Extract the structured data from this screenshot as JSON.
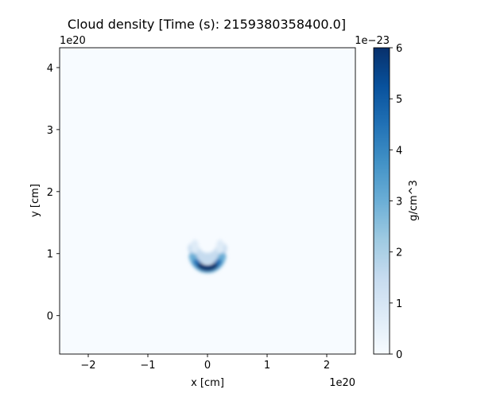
{
  "chart_data": {
    "type": "heatmap",
    "title": "Cloud density [Time (s): 2159380358400.0]",
    "xlabel": "x [cm]",
    "ylabel": "y [cm]",
    "x_offset_label": "1e20",
    "y_offset_label": "1e20",
    "xlim": [
      -2.48,
      2.48
    ],
    "ylim": [
      -0.62,
      4.32
    ],
    "x_ticks": [
      -2,
      -1,
      0,
      1,
      2
    ],
    "x_tick_labels": [
      "−2",
      "−1",
      "0",
      "1",
      "2"
    ],
    "y_ticks": [
      0,
      1,
      2,
      3,
      4
    ],
    "y_tick_labels": [
      "0",
      "1",
      "2",
      "3",
      "4"
    ],
    "colormap": "Blues",
    "colorbar": {
      "label": "g/cm^3",
      "offset_label": "1e−23",
      "range": [
        0,
        6
      ],
      "ticks": [
        0,
        1,
        2,
        3,
        4,
        5,
        6
      ],
      "tick_labels": [
        "0",
        "1",
        "2",
        "3",
        "4",
        "5",
        "6"
      ]
    },
    "background_density": 0.05,
    "features": [
      {
        "name": "shell",
        "center": [
          0.0,
          1.0
        ],
        "radius": 0.25,
        "peak_density": 5.5
      }
    ]
  }
}
